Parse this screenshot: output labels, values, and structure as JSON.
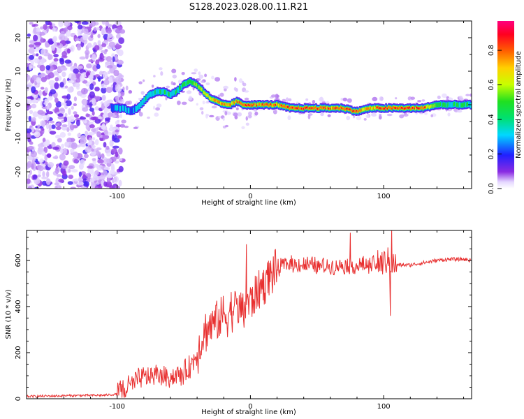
{
  "title": "S128.2023.028.00.11.R21",
  "chart_data": [
    {
      "type": "heatmap",
      "name": "spectrogram",
      "xlabel": "Height of straight line (km)",
      "ylabel": "Frequency (Hz)",
      "xlim": [
        -168,
        166
      ],
      "ylim": [
        -25,
        25
      ],
      "xticks": [
        -100,
        0,
        100
      ],
      "yticks": [
        -20,
        -10,
        0,
        10,
        20
      ],
      "ridge": {
        "x": [
          -103,
          -95,
          -90,
          -85,
          -80,
          -75,
          -70,
          -65,
          -60,
          -55,
          -50,
          -45,
          -40,
          -35,
          -30,
          -25,
          -20,
          -15,
          -10,
          -5,
          0,
          5,
          10,
          20,
          30,
          40,
          50,
          60,
          70,
          80,
          90,
          100,
          110,
          120,
          130,
          140,
          150,
          160,
          166
        ],
        "freq": [
          -1,
          -1,
          -2,
          -1,
          1,
          3,
          4,
          4,
          3,
          4,
          6,
          7,
          6,
          4,
          2,
          1,
          0,
          0,
          1,
          0,
          0,
          0,
          0,
          0,
          -1,
          -1,
          -1,
          -1,
          -1,
          -2,
          -1,
          -1,
          -1,
          -1,
          -1,
          0,
          0,
          0,
          0
        ],
        "amplitude": [
          0.3,
          0.4,
          0.3,
          0.4,
          0.5,
          0.5,
          0.5,
          0.5,
          0.5,
          0.5,
          0.55,
          0.6,
          0.65,
          0.7,
          0.8,
          0.8,
          0.85,
          0.85,
          0.85,
          0.9,
          0.95,
          0.9,
          0.9,
          0.9,
          0.95,
          0.95,
          0.95,
          0.9,
          0.95,
          0.9,
          0.8,
          0.95,
          0.95,
          0.95,
          0.9,
          0.6,
          0.5,
          0.5,
          0.5
        ]
      },
      "noise_region_x": [
        -168,
        -102
      ],
      "colorbar": {
        "label": "Normalized spectral amplitude",
        "range": [
          0,
          0.97
        ],
        "ticks": [
          "0.0",
          "0.2",
          "0.4",
          "0.6",
          "0.8"
        ],
        "tick_values": [
          0,
          0.2,
          0.4,
          0.6,
          0.8
        ]
      }
    },
    {
      "type": "line",
      "name": "snr",
      "xlabel": "Height of straight line (km)",
      "ylabel": "SNR (10 * v/v)",
      "xlim": [
        -168,
        166
      ],
      "ylim": [
        0,
        730
      ],
      "xticks": [
        -100,
        0,
        100
      ],
      "yticks": [
        0,
        200,
        400,
        600
      ],
      "color": "#e83030",
      "series": [
        {
          "name": "SNR",
          "x": [
            -168,
            -150,
            -130,
            -110,
            -100,
            -95,
            -90,
            -85,
            -80,
            -75,
            -70,
            -65,
            -60,
            -55,
            -50,
            -45,
            -40,
            -35,
            -30,
            -25,
            -20,
            -15,
            -10,
            -5,
            -2,
            0,
            5,
            10,
            15,
            20,
            25,
            30,
            40,
            50,
            60,
            70,
            75,
            80,
            90,
            100,
            103,
            105,
            108,
            110,
            120,
            130,
            140,
            150,
            160,
            166
          ],
          "y": [
            10,
            12,
            14,
            15,
            20,
            35,
            60,
            80,
            90,
            100,
            100,
            100,
            95,
            100,
            110,
            140,
            200,
            280,
            320,
            340,
            360,
            380,
            400,
            380,
            420,
            420,
            460,
            500,
            540,
            560,
            580,
            585,
            580,
            575,
            575,
            580,
            580,
            575,
            580,
            590,
            600,
            590,
            580,
            580,
            580,
            590,
            600,
            605,
            605,
            600
          ]
        }
      ],
      "spikes": [
        {
          "x": -3,
          "y": 670
        },
        {
          "x": 75,
          "y": 720
        },
        {
          "x": 106,
          "y": 740
        },
        {
          "x": 105,
          "y": 360
        }
      ]
    }
  ]
}
